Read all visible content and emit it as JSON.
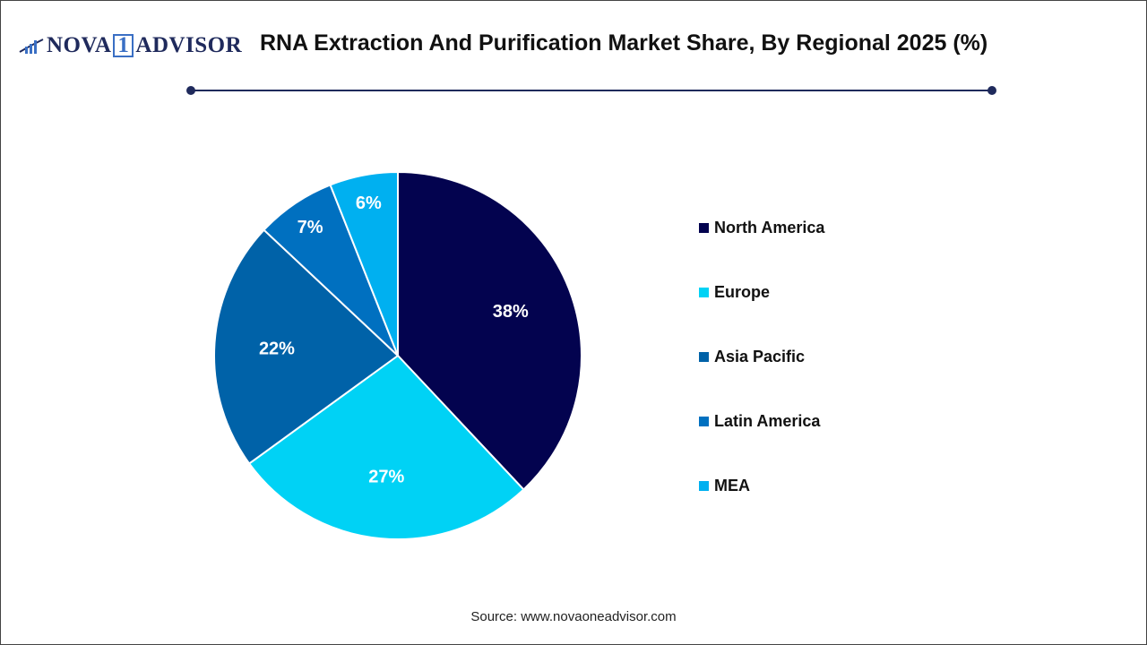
{
  "logo_text": "NOVA 1 ADVISOR",
  "header": {
    "title": "RNA Extraction And Purification Market Share, By Regional 2025 (%)"
  },
  "chart_data": {
    "type": "pie",
    "title": "RNA Extraction And Purification Market Share, By Regional 2025 (%)",
    "categories": [
      "North America",
      "Europe",
      "Asia Pacific",
      "Latin America",
      "MEA"
    ],
    "values": [
      38,
      27,
      22,
      7,
      6
    ],
    "labels": [
      "38%",
      "27%",
      "22%",
      "7%",
      "6%"
    ],
    "colors": [
      "#03034f",
      "#00d2f5",
      "#0062a8",
      "#0070c0",
      "#00b0f0"
    ],
    "start": "top",
    "direction": "clockwise",
    "legend": "right"
  },
  "source": "Source: www.novaoneadvisor.com"
}
